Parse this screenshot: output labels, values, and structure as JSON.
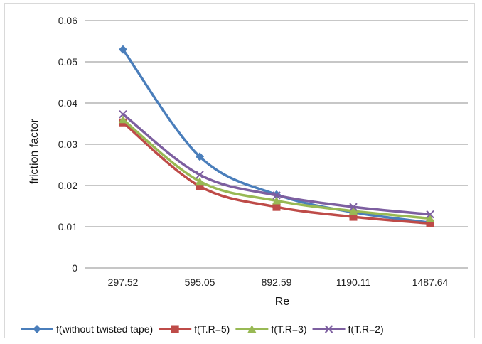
{
  "chart_data": {
    "type": "line",
    "categories": [
      "297.52",
      "595.05",
      "892.59",
      "1190.11",
      "1487.64"
    ],
    "xlabel": "Re",
    "ylabel": "friction factor",
    "ylim": [
      0,
      0.06
    ],
    "yticks": [
      "0",
      "0.01",
      "0.02",
      "0.03",
      "0.04",
      "0.05",
      "0.06"
    ],
    "grid": "horizontal",
    "legend": "bottom",
    "series": [
      {
        "name": "f(without twisted tape)",
        "color": "#4a7ebb",
        "marker": "diamond",
        "values": [
          0.053,
          0.027,
          0.0178,
          0.0135,
          0.011
        ]
      },
      {
        "name": "f(T.R=5)",
        "color": "#be4b48",
        "marker": "square",
        "values": [
          0.0353,
          0.0198,
          0.0148,
          0.0124,
          0.0108
        ]
      },
      {
        "name": "f(T.R=3)",
        "color": "#98b954",
        "marker": "triangle",
        "values": [
          0.036,
          0.021,
          0.0163,
          0.0138,
          0.012
        ]
      },
      {
        "name": "f(T.R=2)",
        "color": "#7d5fa0",
        "marker": "x",
        "values": [
          0.0373,
          0.0226,
          0.0176,
          0.0148,
          0.013
        ]
      }
    ]
  }
}
